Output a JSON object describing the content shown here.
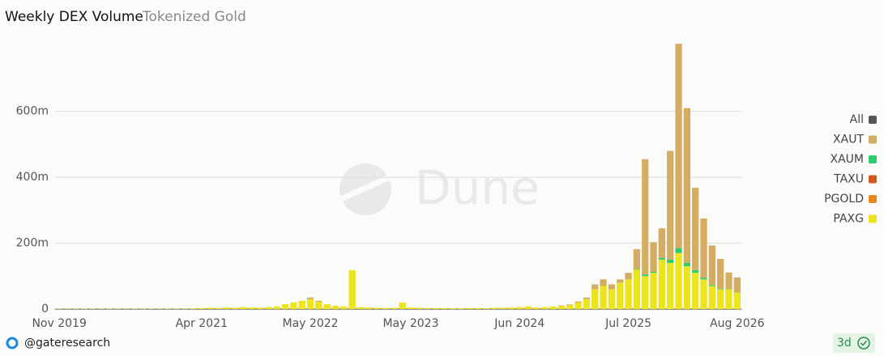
{
  "chart_data": {
    "type": "bar",
    "stacked": true,
    "title": "Weekly DEX Volume",
    "subtitle": "Tokenized Gold",
    "watermark": "Dune",
    "footer": "@gateresearch",
    "badge": "3d",
    "legend": "right",
    "legend_all": {
      "name": "All",
      "color": "#555555"
    },
    "grid": true,
    "ylim": [
      0,
      820
    ],
    "yticks": [
      0,
      {
        "value": 200,
        "label": "200m"
      },
      {
        "value": 400,
        "label": "400m"
      },
      {
        "value": 600,
        "label": "600m"
      }
    ],
    "categories": [
      "Nov 2019",
      null,
      null,
      null,
      null,
      null,
      null,
      null,
      null,
      null,
      null,
      null,
      null,
      null,
      null,
      null,
      null,
      "Apr 2021",
      null,
      null,
      null,
      null,
      null,
      null,
      null,
      null,
      null,
      null,
      null,
      null,
      "May 2022",
      null,
      null,
      null,
      null,
      null,
      null,
      null,
      null,
      null,
      null,
      null,
      "May 2023",
      null,
      null,
      null,
      null,
      null,
      null,
      null,
      null,
      null,
      null,
      null,
      null,
      "Jun 2024",
      null,
      null,
      null,
      null,
      null,
      null,
      null,
      null,
      null,
      null,
      null,
      null,
      "Jul 2025",
      null,
      null,
      null,
      null,
      null,
      null,
      null,
      null,
      null,
      null,
      null,
      null,
      "Aug 2026"
    ],
    "series": [
      {
        "name": "XAUT",
        "color": "#d4ac62",
        "values": [
          0,
          0,
          0,
          0,
          0,
          0,
          0,
          0,
          0,
          0,
          0,
          0,
          0,
          0,
          0,
          0,
          0,
          0,
          0,
          0,
          0,
          0,
          0,
          0,
          0,
          0,
          0,
          0,
          0,
          0,
          5,
          3,
          0,
          0,
          0,
          0,
          0,
          0,
          0,
          0,
          0,
          0,
          0,
          0,
          0,
          0,
          0,
          0,
          0,
          0,
          0,
          0,
          0,
          0,
          0,
          0,
          0,
          0,
          0,
          0,
          1,
          2,
          3,
          5,
          15,
          20,
          15,
          10,
          20,
          60,
          350,
          90,
          90,
          330,
          620,
          470,
          250,
          180,
          120,
          90,
          50,
          45
        ]
      },
      {
        "name": "XAUM",
        "color": "#2ecc71",
        "values": [
          0,
          0,
          0,
          0,
          0,
          0,
          0,
          0,
          0,
          0,
          0,
          0,
          0,
          0,
          0,
          0,
          0,
          0,
          0,
          0,
          0,
          0,
          0,
          0,
          0,
          0,
          0,
          0,
          0,
          0,
          0,
          0,
          0,
          0,
          0,
          0,
          0,
          0,
          0,
          0,
          0,
          0,
          0,
          0,
          0,
          0,
          0,
          0,
          0,
          0,
          0,
          0,
          0,
          0,
          0,
          0,
          0,
          0,
          0,
          0,
          0,
          0,
          0,
          0,
          0,
          0,
          0,
          0,
          0,
          2,
          5,
          3,
          5,
          10,
          15,
          10,
          8,
          5,
          3,
          2,
          1,
          1
        ]
      },
      {
        "name": "TAXU",
        "color": "#d2581e",
        "values": [
          0,
          0,
          0,
          0,
          0,
          0,
          0,
          0,
          0,
          0,
          0,
          0,
          0,
          0,
          0,
          0,
          0,
          0,
          0,
          0,
          0,
          0,
          0,
          0,
          0,
          0,
          0,
          0,
          0,
          0,
          0,
          0,
          0,
          0,
          0,
          0,
          0,
          0,
          0,
          0,
          0,
          0,
          0,
          0,
          0,
          0,
          0,
          0,
          0,
          0,
          0,
          0,
          0,
          0,
          0,
          0,
          0,
          0,
          0,
          0,
          0,
          0,
          0,
          0,
          0,
          0,
          0,
          0,
          0,
          0,
          0,
          0,
          0,
          0,
          0,
          0,
          0,
          0,
          0,
          0,
          0,
          0
        ]
      },
      {
        "name": "PGOLD",
        "color": "#e8871e",
        "values": [
          0,
          0,
          0,
          0,
          0,
          0,
          0,
          0,
          0,
          0,
          0,
          0,
          0,
          0,
          0,
          0,
          0,
          0,
          0,
          0,
          0,
          0,
          0,
          0,
          0,
          0,
          0,
          0,
          0,
          0,
          0,
          0,
          0,
          0,
          0,
          0,
          0,
          0,
          0,
          0,
          0,
          0,
          0,
          0,
          0,
          0,
          0,
          0,
          0,
          0,
          0,
          0,
          0,
          0,
          0,
          0,
          0,
          0,
          0,
          0,
          0,
          0,
          0,
          0,
          0,
          0,
          0,
          0,
          0,
          0,
          0,
          0,
          0,
          0,
          0,
          0,
          0,
          0,
          0,
          0,
          0,
          0
        ]
      },
      {
        "name": "PAXG",
        "color": "#ece41c",
        "values": [
          1,
          1,
          1,
          1,
          1,
          1,
          1,
          1,
          1,
          1,
          1,
          1,
          1,
          1,
          1,
          1,
          2,
          3,
          4,
          3,
          5,
          4,
          6,
          5,
          4,
          6,
          8,
          15,
          20,
          25,
          30,
          22,
          15,
          10,
          8,
          118,
          6,
          5,
          4,
          3,
          4,
          20,
          5,
          4,
          3,
          3,
          3,
          2,
          2,
          3,
          3,
          3,
          4,
          4,
          5,
          6,
          8,
          5,
          6,
          8,
          10,
          12,
          20,
          30,
          60,
          70,
          60,
          80,
          90,
          120,
          100,
          110,
          150,
          140,
          170,
          130,
          110,
          90,
          70,
          60,
          60,
          50
        ]
      }
    ]
  }
}
